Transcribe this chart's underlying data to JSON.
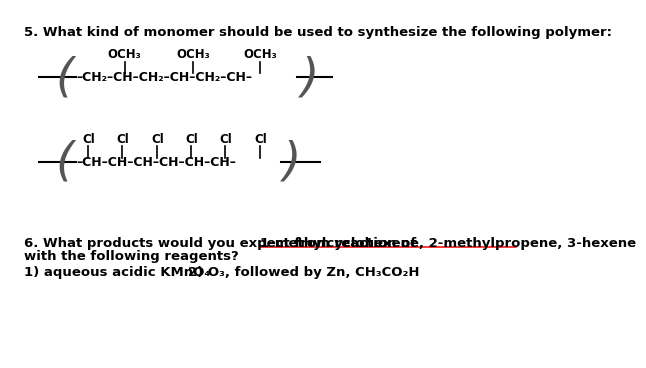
{
  "background_color": "#ffffff",
  "fig_width": 6.68,
  "fig_height": 4.53,
  "q5_text": "5. What kind of monomer should be used to synthesize the following polymer:",
  "q6_prefix": "6. What products would you expect from reaction of ",
  "q6_compounds": "1-methylcyclohexene, 2-methylpropene, 3-hexene",
  "q6_text2": "with the following reagents?",
  "reagent1": "1) aqueous acidic KMnO₄",
  "reagent2": "2) O₃, followed by Zn, CH₃CO₂H",
  "text_color": "#000000",
  "underline_color": "#ff0000",
  "font_size_main": 9.5,
  "font_size_chem": 9.0,
  "chain1_text": "–CH₂–CH–CH₂–CH–CH₂–CH–",
  "och3_label": "OCH₃",
  "chain2_text": "–CH–CH–CH–CH–CH–CH–",
  "cl_label": "Cl"
}
